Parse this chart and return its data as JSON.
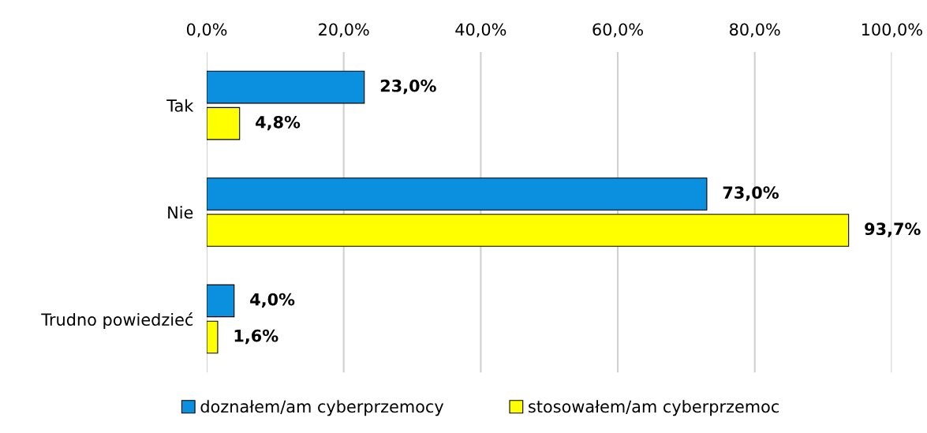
{
  "chart_data": {
    "type": "bar",
    "orientation": "horizontal",
    "categories": [
      "Tak",
      "Nie",
      "Trudno powiedzieć"
    ],
    "series": [
      {
        "name": "doznałem/am cyberprzemocy",
        "color": "#0b8fdf",
        "values": [
          23.0,
          73.0,
          4.0
        ],
        "value_labels": [
          "23,0%",
          "73,0%",
          "4,0%"
        ]
      },
      {
        "name": "stosowałem/am cyberprzemoc",
        "color": "#ffff00",
        "values": [
          4.8,
          93.7,
          1.6
        ],
        "value_labels": [
          "4,8%",
          "93,7%",
          "1,6%"
        ]
      }
    ],
    "xlim": [
      0,
      100
    ],
    "xticks": [
      {
        "value": 0,
        "label": "0,0%"
      },
      {
        "value": 20,
        "label": "20,0%"
      },
      {
        "value": 40,
        "label": "40,0%"
      },
      {
        "value": 60,
        "label": "60,0%"
      },
      {
        "value": 80,
        "label": "80,0%"
      },
      {
        "value": 100,
        "label": "100,0%"
      }
    ],
    "grid": "x",
    "legend": "bottom"
  }
}
